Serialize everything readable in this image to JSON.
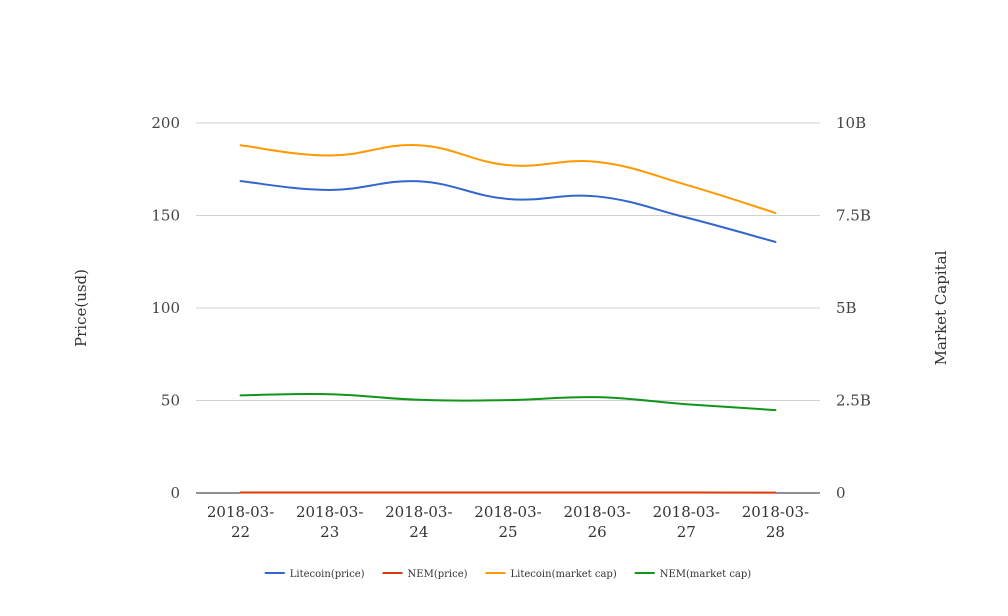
{
  "chart_data": {
    "type": "line",
    "title": "",
    "x": [
      "2018-03-22",
      "2018-03-23",
      "2018-03-24",
      "2018-03-25",
      "2018-03-26",
      "2018-03-27",
      "2018-03-28"
    ],
    "x_tick_lines": [
      [
        "2018-03-",
        "22"
      ],
      [
        "2018-03-",
        "23"
      ],
      [
        "2018-03-",
        "24"
      ],
      [
        "2018-03-",
        "25"
      ],
      [
        "2018-03-",
        "26"
      ],
      [
        "2018-03-",
        "27"
      ],
      [
        "2018-03-",
        "28"
      ]
    ],
    "ylabel_left": "Price(usd)",
    "ylabel_right": "Market Capital",
    "ylim_left": [
      0,
      200
    ],
    "ylim_right": [
      0,
      10000000000
    ],
    "y_ticks_left": [
      "0",
      "50",
      "100",
      "150",
      "200"
    ],
    "y_ticks_right": [
      "0",
      "2.5B",
      "5B",
      "7.5B",
      "10B"
    ],
    "grid": true,
    "legend_position": "bottom",
    "series": [
      {
        "name": "Litecoin(price)",
        "axis": "left",
        "color": "#3366cc",
        "values": [
          168.6,
          163.8,
          168.5,
          158.9,
          160.3,
          148.9,
          135.7
        ]
      },
      {
        "name": "NEM(price)",
        "axis": "left",
        "color": "#dc3912",
        "values": [
          0.27,
          0.27,
          0.26,
          0.25,
          0.26,
          0.24,
          0.22
        ]
      },
      {
        "name": "Litecoin(market cap)",
        "axis": "right",
        "color": "#ff9900",
        "values": [
          9400000000,
          9120000000,
          9400000000,
          8860000000,
          8950000000,
          8330000000,
          7570000000
        ]
      },
      {
        "name": "NEM(market cap)",
        "axis": "right",
        "color": "#109618",
        "values": [
          2640000000,
          2670000000,
          2520000000,
          2510000000,
          2590000000,
          2400000000,
          2240000000
        ]
      }
    ]
  }
}
